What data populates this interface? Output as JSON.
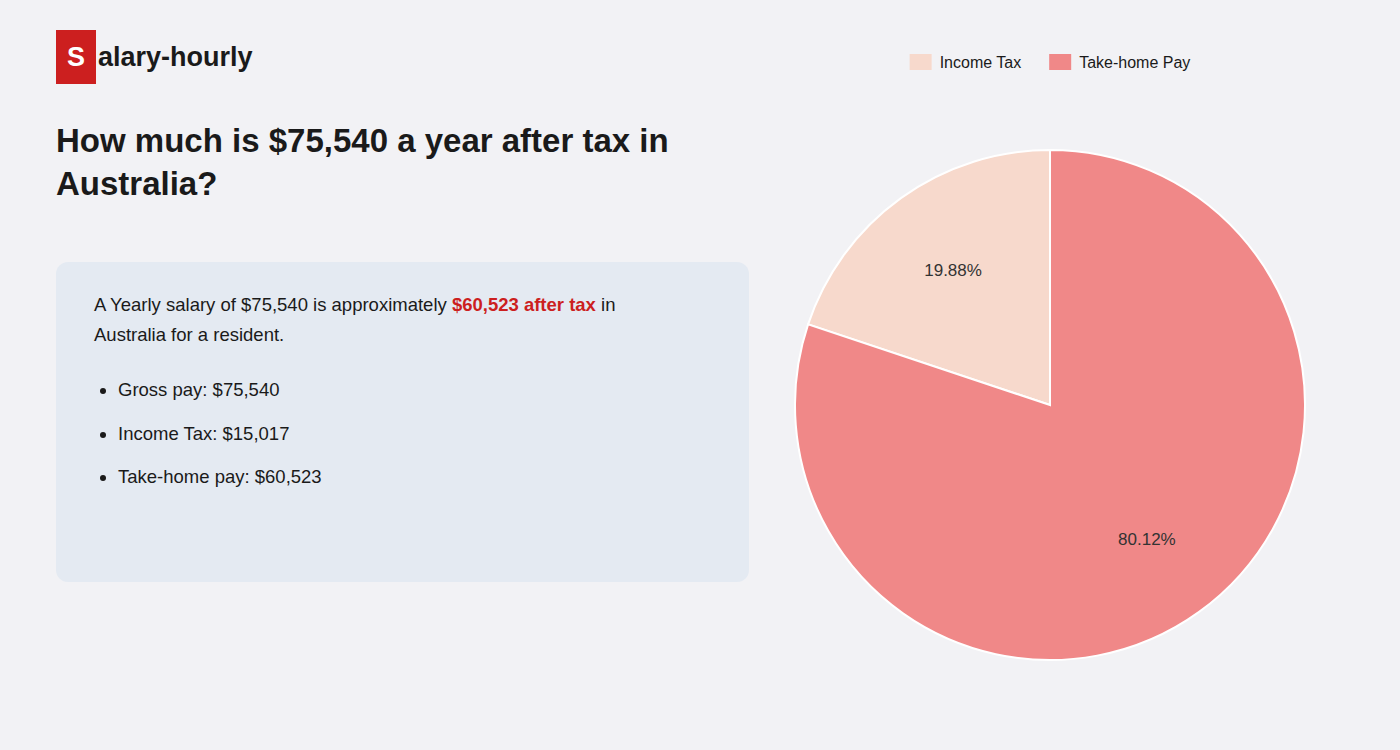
{
  "chart_data": {
    "type": "pie",
    "title": "How much is $75,540 a year after tax in Australia?",
    "categories": [
      "Income Tax",
      "Take-home Pay"
    ],
    "values": [
      19.88,
      80.12
    ],
    "value_labels": [
      "19.88%",
      "80.12%"
    ],
    "colors": [
      "#f7d9cc",
      "#f08888"
    ],
    "data_labels": true,
    "legend": "top",
    "annotations": [
      "S",
      "alary-hourly",
      "A Yearly salary of $75,540 is approximately",
      "$60,523 after tax",
      "in",
      "Australia for a resident.",
      "Gross pay: $75,540",
      "Income Tax: $15,017",
      "Take-home pay: $60,523"
    ]
  }
}
